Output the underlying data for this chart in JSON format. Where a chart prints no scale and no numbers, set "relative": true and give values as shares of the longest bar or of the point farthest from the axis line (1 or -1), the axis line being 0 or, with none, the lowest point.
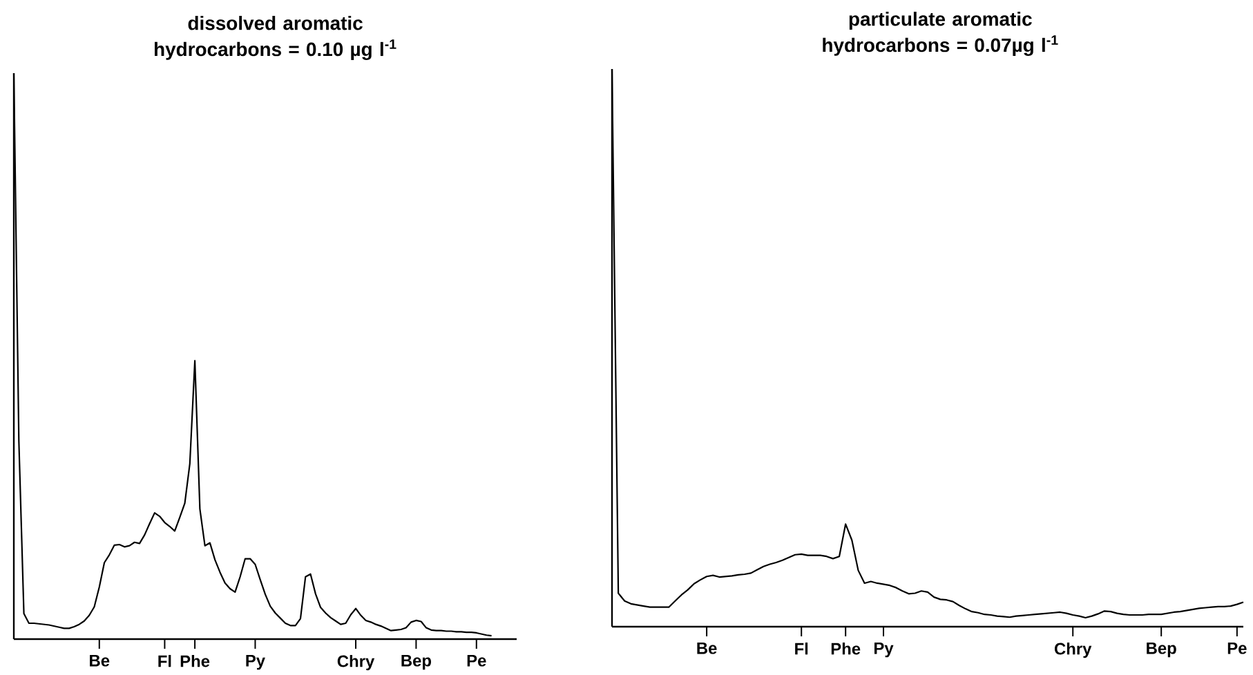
{
  "chart_data": [
    {
      "type": "line",
      "title": "dissolved aromatic hydrocarbons = 0.10 µg l$^{-1}$",
      "relative": true,
      "categories": [
        null,
        null,
        null,
        null,
        null,
        null,
        null,
        null,
        null,
        null,
        null,
        null,
        null,
        null,
        null,
        null,
        null,
        "Be",
        null,
        null,
        null,
        null,
        null,
        null,
        null,
        null,
        null,
        null,
        null,
        null,
        "Fl",
        null,
        null,
        null,
        null,
        null,
        "Phe",
        null,
        null,
        null,
        null,
        null,
        null,
        null,
        null,
        null,
        null,
        null,
        "Py",
        null,
        null,
        null,
        null,
        null,
        null,
        null,
        null,
        null,
        null,
        null,
        null,
        null,
        null,
        null,
        null,
        null,
        null,
        null,
        "Chry",
        null,
        null,
        null,
        null,
        null,
        null,
        null,
        null,
        null,
        null,
        null,
        "Bep",
        null,
        null,
        null,
        null,
        null,
        null,
        null,
        null,
        null,
        null,
        null,
        "Pe",
        null,
        null,
        null,
        null,
        null,
        null,
        null,
        null
      ],
      "series": [
        {
          "color": "#000000",
          "values": [
            1,
            0.35,
            0.045,
            0.028,
            0.028,
            0.027,
            0.026,
            0.025,
            0.023,
            0.021,
            0.019,
            0.019,
            0.022,
            0.026,
            0.032,
            0.042,
            0.057,
            0.092,
            0.135,
            0.149,
            0.166,
            0.167,
            0.163,
            0.165,
            0.171,
            0.169,
            0.184,
            0.204,
            0.223,
            0.217,
            0.206,
            0.199,
            0.191,
            0.215,
            0.24,
            0.31,
            0.492,
            0.23,
            0.165,
            0.17,
            0.14,
            0.118,
            0.099,
            0.089,
            0.083,
            0.11,
            0.142,
            0.142,
            0.132,
            0.105,
            0.079,
            0.058,
            0.046,
            0.037,
            0.028,
            0.024,
            0.024,
            0.036,
            0.11,
            0.115,
            0.08,
            0.056,
            0.046,
            0.038,
            0.032,
            0.026,
            0.028,
            0.043,
            0.054,
            0.042,
            0.033,
            0.03,
            0.026,
            0.023,
            0.019,
            0.015,
            0.016,
            0.017,
            0.02,
            0.03,
            0.033,
            0.031,
            0.02,
            0.016,
            0.015,
            0.015,
            0.014,
            0.014,
            0.013,
            0.013,
            0.012,
            0.012,
            0.011,
            0.009,
            0.007,
            0.006,
            null,
            null,
            null,
            null,
            null
          ]
        }
      ]
    },
    {
      "type": "line",
      "title": "particulate aromatic hydrocarbons = 0.07µg l$^{-1}$",
      "relative": true,
      "categories": [
        null,
        null,
        null,
        null,
        null,
        null,
        null,
        null,
        null,
        null,
        null,
        null,
        null,
        null,
        null,
        "Be",
        null,
        null,
        null,
        null,
        null,
        null,
        null,
        null,
        null,
        null,
        null,
        null,
        null,
        null,
        "Fl",
        null,
        null,
        null,
        null,
        null,
        null,
        "Phe",
        null,
        null,
        null,
        null,
        null,
        "Py",
        null,
        null,
        null,
        null,
        null,
        null,
        null,
        null,
        null,
        null,
        null,
        null,
        null,
        null,
        null,
        null,
        null,
        null,
        null,
        null,
        null,
        null,
        null,
        null,
        null,
        null,
        null,
        null,
        null,
        "Chry",
        null,
        null,
        null,
        null,
        null,
        null,
        null,
        null,
        null,
        null,
        null,
        null,
        null,
        "Bep",
        null,
        null,
        null,
        null,
        null,
        null,
        null,
        null,
        null,
        null,
        null,
        "Pe",
        null
      ],
      "series": [
        {
          "color": "#000000",
          "values": [
            1,
            0.06,
            0.046,
            0.041,
            0.039,
            0.037,
            0.035,
            0.035,
            0.035,
            0.035,
            0.046,
            0.057,
            0.066,
            0.077,
            0.084,
            0.09,
            0.092,
            0.089,
            0.09,
            0.091,
            0.093,
            0.094,
            0.096,
            0.102,
            0.108,
            0.112,
            0.115,
            0.119,
            0.124,
            0.129,
            0.13,
            0.128,
            0.128,
            0.128,
            0.126,
            0.122,
            0.126,
            0.184,
            0.155,
            0.101,
            0.078,
            0.081,
            0.078,
            0.076,
            0.074,
            0.07,
            0.064,
            0.059,
            0.06,
            0.064,
            0.062,
            0.053,
            0.049,
            0.048,
            0.045,
            0.038,
            0.032,
            0.027,
            0.025,
            0.022,
            0.021,
            0.019,
            0.018,
            0.017,
            0.019,
            0.02,
            0.021,
            0.022,
            0.023,
            0.024,
            0.025,
            0.026,
            0.024,
            0.021,
            0.019,
            0.016,
            0.019,
            0.023,
            0.028,
            0.027,
            0.024,
            0.022,
            0.021,
            0.021,
            0.021,
            0.022,
            0.022,
            0.022,
            0.024,
            0.026,
            0.027,
            0.029,
            0.031,
            0.033,
            0.034,
            0.035,
            0.036,
            0.036,
            0.037,
            0.04,
            0.044
          ]
        }
      ]
    }
  ]
}
